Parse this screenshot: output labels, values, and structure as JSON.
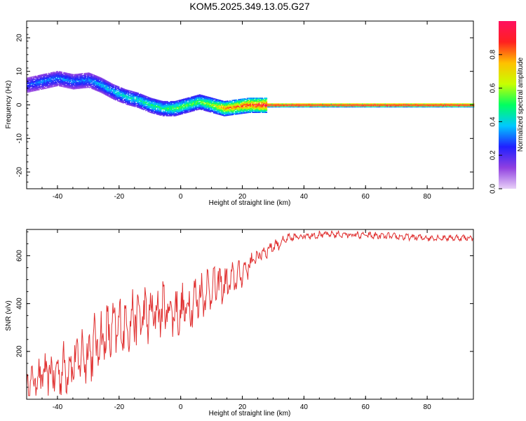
{
  "figure_title": "KOM5.2025.349.13.05.G27",
  "chart_data": [
    {
      "type": "heatmap",
      "xlabel": "Height of straight line (km)",
      "ylabel": "Frequency (Hz)",
      "xlim": [
        -50,
        95
      ],
      "ylim": [
        -25,
        25
      ],
      "x_ticks": [
        -40,
        -20,
        0,
        20,
        40,
        60,
        80
      ],
      "y_ticks": [
        -20,
        -10,
        0,
        10,
        20
      ],
      "colorbar": {
        "label": "Normalized spectral amplitude",
        "range": [
          0.0,
          1.0
        ],
        "ticks": [
          0.0,
          0.2,
          0.4,
          0.6,
          0.8
        ],
        "colormap": [
          "#e8d0f8",
          "#9040e0",
          "#2020ff",
          "#00c8ff",
          "#00ff60",
          "#c8ff00",
          "#ffc000",
          "#ff2020",
          "#ff1060"
        ]
      },
      "ridge": {
        "x": [
          -50,
          -45,
          -40,
          -35,
          -30,
          -26,
          -22,
          -18,
          -14,
          -10,
          -6,
          -2,
          2,
          6,
          10,
          14,
          18,
          22,
          26,
          30,
          40,
          50,
          60,
          70,
          80,
          95
        ],
        "freq": [
          6,
          7,
          8,
          7,
          7.5,
          6,
          4,
          2.5,
          1.5,
          0,
          -1,
          -1,
          0,
          1,
          0,
          -1,
          -0.5,
          0,
          0,
          0,
          0,
          0,
          0,
          0,
          0,
          0
        ],
        "amplitude": [
          0.25,
          0.3,
          0.3,
          0.3,
          0.3,
          0.35,
          0.35,
          0.4,
          0.4,
          0.45,
          0.45,
          0.5,
          0.5,
          0.5,
          0.55,
          0.7,
          0.75,
          0.8,
          0.85,
          0.95,
          0.95,
          0.9,
          0.95,
          0.95,
          0.95,
          0.95
        ]
      }
    },
    {
      "type": "line",
      "xlabel": "Height of straight line (km)",
      "ylabel": "SNR (v/v)",
      "xlim": [
        -50,
        95
      ],
      "ylim": [
        0,
        710
      ],
      "x_ticks": [
        -40,
        -20,
        0,
        20,
        40,
        60,
        80
      ],
      "y_ticks": [
        200,
        400,
        600
      ],
      "color": "#e03030",
      "trend": {
        "x": [
          -50,
          -45,
          -40,
          -35,
          -30,
          -25,
          -20,
          -15,
          -10,
          -5,
          0,
          5,
          10,
          15,
          20,
          25,
          30,
          35,
          40,
          50,
          60,
          70,
          80,
          90,
          95
        ],
        "snr": [
          60,
          100,
          110,
          150,
          200,
          260,
          300,
          340,
          350,
          380,
          360,
          420,
          470,
          480,
          530,
          600,
          640,
          670,
          685,
          690,
          685,
          680,
          675,
          675,
          675
        ]
      },
      "noise_amplitude": {
        "x": [
          -50,
          -30,
          -10,
          10,
          20,
          30,
          40,
          95
        ],
        "amp": [
          60,
          120,
          110,
          90,
          50,
          25,
          15,
          12
        ]
      }
    }
  ]
}
